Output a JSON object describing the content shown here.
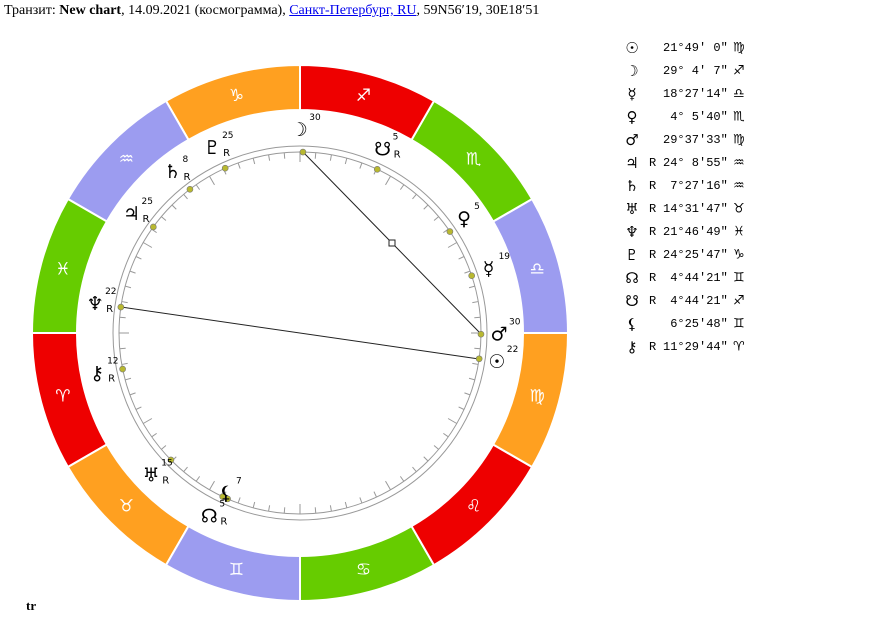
{
  "header": {
    "prefix": "Транзит:",
    "chart_name": "New chart",
    "details": ", 14.09.2021 (космограмма),",
    "location": "Санкт-Петербург, RU",
    "coordinates": ", 59N56′19, 30E18′51"
  },
  "zodiac": [
    "♈",
    "♉",
    "♊",
    "♋",
    "♌",
    "♍",
    "♎",
    "♏",
    "♐",
    "♑",
    "♒",
    "♓"
  ],
  "planets": [
    {
      "glyph": "☉",
      "position": "21°49′ 0″",
      "sign": "♍",
      "wheel_label": "22"
    },
    {
      "glyph": "☽",
      "position": "29° 4′ 7″",
      "sign": "♐",
      "wheel_label": "30"
    },
    {
      "glyph": "☿",
      "position": "18°27′14″",
      "sign": "♎",
      "wheel_label": "19"
    },
    {
      "glyph": "♀",
      "position": " 4° 5′40″",
      "sign": "♏",
      "wheel_label": "5"
    },
    {
      "glyph": "♂",
      "position": "29°37′33″",
      "sign": "♍",
      "wheel_label": "30"
    },
    {
      "glyph": "♃",
      "retrograde": "R",
      "position": "24° 8′55″",
      "sign": "♒",
      "wheel_label": "25"
    },
    {
      "glyph": "♄",
      "retrograde": "R",
      "position": " 7°27′16″",
      "sign": "♒",
      "wheel_label": "8"
    },
    {
      "glyph": "♅",
      "retrograde": "R",
      "position": "14°31′47″",
      "sign": "♉",
      "wheel_label": "15"
    },
    {
      "glyph": "♆",
      "retrograde": "R",
      "position": "21°46′49″",
      "sign": "♓",
      "wheel_label": "22"
    },
    {
      "glyph": "♇",
      "retrograde": "R",
      "position": "24°25′47″",
      "sign": "♑",
      "wheel_label": "25"
    },
    {
      "glyph": "☊",
      "retrograde": "R",
      "position": " 4°44′21″",
      "sign": "♊",
      "wheel_label": "5"
    },
    {
      "glyph": "☋",
      "retrograde": "R",
      "position": " 4°44′21″",
      "sign": "♐",
      "wheel_label": "5"
    },
    {
      "glyph": "⚸",
      "position": " 6°25′48″",
      "sign": "♊",
      "wheel_label": "7"
    },
    {
      "glyph": "⚷",
      "retrograde": "R",
      "position": "11°29′44″",
      "sign": "♈",
      "wheel_label": "12"
    }
  ],
  "footer": "tr"
}
